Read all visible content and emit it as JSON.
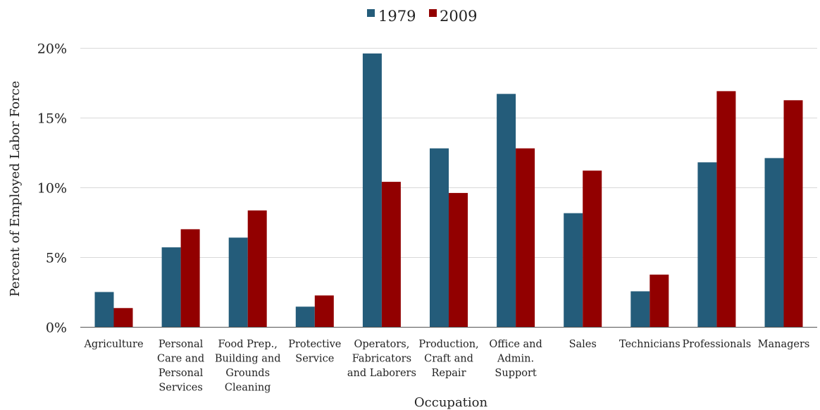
{
  "chart_data": {
    "type": "bar",
    "title": "",
    "xlabel": "Occupation",
    "ylabel": "Percent of  Employed Labor Force",
    "ylim": [
      0,
      20
    ],
    "yticks": [
      0,
      5,
      10,
      15,
      20
    ],
    "ytick_labels": [
      "0%",
      "5%",
      "10%",
      "15%",
      "20%"
    ],
    "grid": true,
    "legend_position": "top-center",
    "categories": [
      [
        "Agriculture"
      ],
      [
        "Personal",
        "Care and",
        "Personal",
        "Services"
      ],
      [
        "Food Prep.,",
        "Building and",
        "Grounds",
        "Cleaning"
      ],
      [
        "Protective",
        "Service"
      ],
      [
        "Operators,",
        "Fabricators",
        "and Laborers"
      ],
      [
        "Production,",
        "Craft and",
        "Repair"
      ],
      [
        "Office and",
        "Admin.",
        "Support"
      ],
      [
        "Sales"
      ],
      [
        "Technicians"
      ],
      [
        "Professionals"
      ],
      [
        "Managers"
      ]
    ],
    "series": [
      {
        "name": "1979",
        "color": "#245c7a",
        "values": [
          2.5,
          5.7,
          6.4,
          1.45,
          19.6,
          12.8,
          16.7,
          8.15,
          2.55,
          11.8,
          12.1
        ]
      },
      {
        "name": "2009",
        "color": "#920000",
        "values": [
          1.35,
          7.0,
          8.35,
          2.25,
          10.4,
          9.6,
          12.8,
          11.2,
          3.75,
          16.9,
          16.25
        ]
      }
    ]
  }
}
